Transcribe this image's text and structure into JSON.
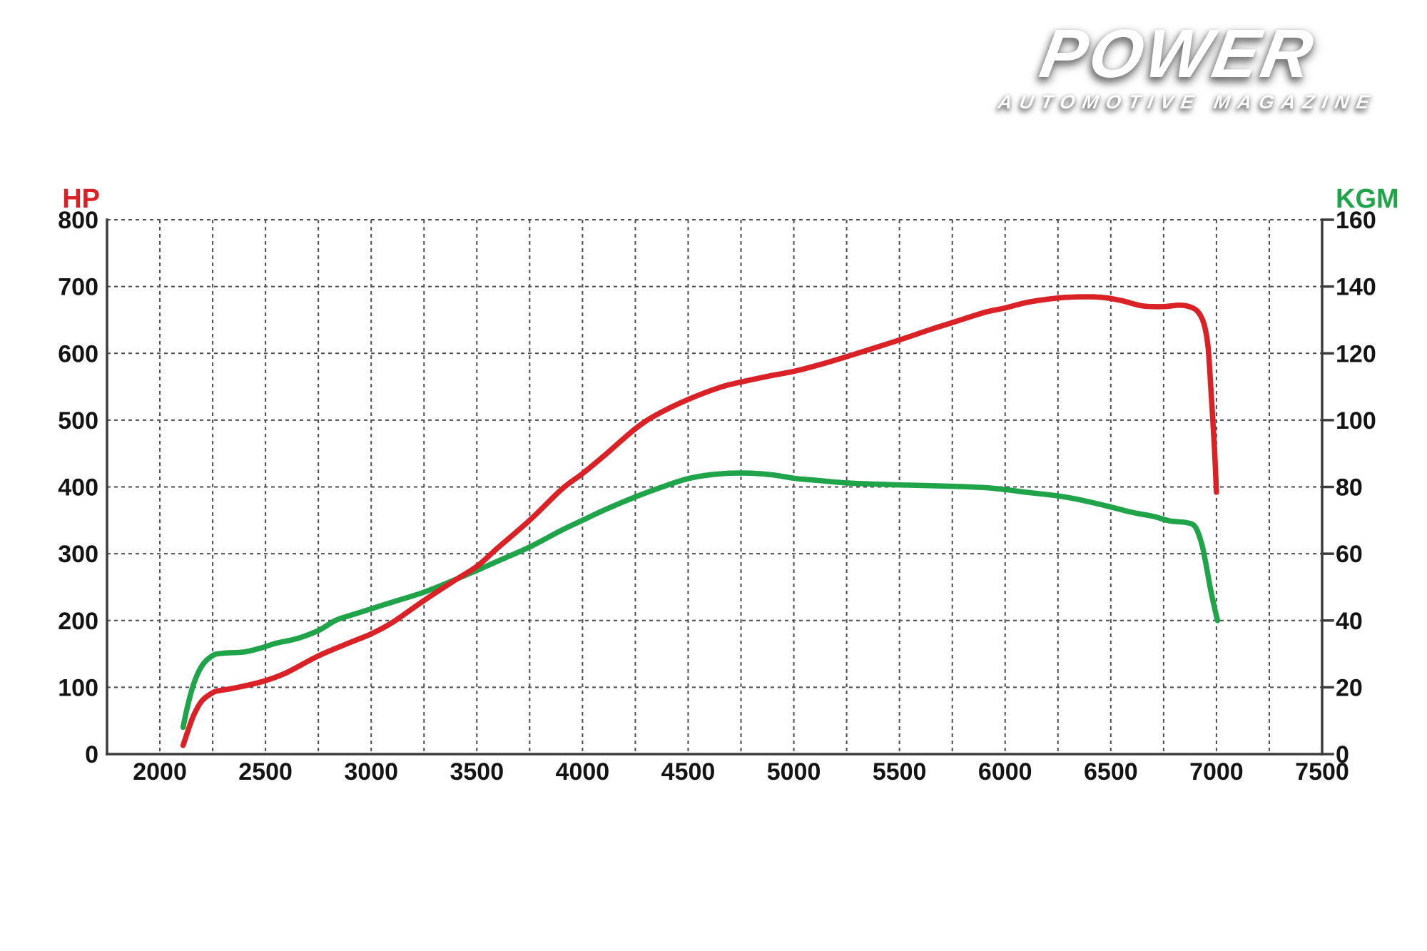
{
  "logo": {
    "title": "POWER",
    "subtitle": "AUTOMOTIVE MAGAZINE"
  },
  "chart_data": {
    "type": "line",
    "title": "",
    "x_axis": {
      "unit": "rpm",
      "min": 1750,
      "max": 7500,
      "grid_step": 250,
      "tick_labels": [
        2000,
        2500,
        3000,
        3500,
        4000,
        4500,
        5000,
        5500,
        6000,
        6500,
        7000,
        7500
      ]
    },
    "left_axis": {
      "label": "HP",
      "min": 0,
      "max": 800,
      "color": "#da2126",
      "tick_labels": [
        0,
        100,
        200,
        300,
        400,
        500,
        600,
        700,
        800
      ]
    },
    "right_axis": {
      "label": "KGM",
      "min": 0,
      "max": 160,
      "color": "#1fa44a",
      "tick_labels": [
        0,
        20,
        40,
        60,
        80,
        100,
        120,
        140,
        160
      ]
    },
    "grid": {
      "style": "dashed",
      "color": "#4d4d4d",
      "axis_color": "#3c3c3c",
      "label_color": "#141414"
    },
    "legend_position": "axis-titles",
    "series": [
      {
        "name": "HP",
        "axis": "left",
        "color": "#da2126",
        "points": [
          [
            2110,
            13
          ],
          [
            2130,
            32
          ],
          [
            2160,
            58
          ],
          [
            2200,
            80
          ],
          [
            2250,
            92
          ],
          [
            2280,
            95
          ],
          [
            2320,
            97
          ],
          [
            2400,
            102
          ],
          [
            2500,
            110
          ],
          [
            2600,
            122
          ],
          [
            2750,
            147
          ],
          [
            2900,
            167
          ],
          [
            3000,
            180
          ],
          [
            3100,
            197
          ],
          [
            3250,
            230
          ],
          [
            3400,
            261
          ],
          [
            3500,
            281
          ],
          [
            3600,
            309
          ],
          [
            3750,
            350
          ],
          [
            3900,
            396
          ],
          [
            4000,
            420
          ],
          [
            4100,
            446
          ],
          [
            4250,
            487
          ],
          [
            4350,
            508
          ],
          [
            4500,
            531
          ],
          [
            4650,
            549
          ],
          [
            4750,
            557
          ],
          [
            4900,
            567
          ],
          [
            5000,
            573
          ],
          [
            5100,
            581
          ],
          [
            5250,
            595
          ],
          [
            5400,
            610
          ],
          [
            5500,
            620
          ],
          [
            5650,
            636
          ],
          [
            5750,
            646
          ],
          [
            5900,
            661
          ],
          [
            6000,
            668
          ],
          [
            6100,
            676
          ],
          [
            6200,
            681
          ],
          [
            6300,
            684
          ],
          [
            6450,
            684
          ],
          [
            6550,
            679
          ],
          [
            6650,
            671
          ],
          [
            6750,
            670
          ],
          [
            6820,
            672
          ],
          [
            6870,
            670
          ],
          [
            6910,
            663
          ],
          [
            6940,
            645
          ],
          [
            6960,
            610
          ],
          [
            6975,
            540
          ],
          [
            6990,
            460
          ],
          [
            7000,
            392
          ]
        ]
      },
      {
        "name": "KGM",
        "axis": "right",
        "color": "#1fa44a",
        "points": [
          [
            2110,
            8
          ],
          [
            2130,
            14
          ],
          [
            2160,
            21
          ],
          [
            2200,
            26.5
          ],
          [
            2250,
            29.5
          ],
          [
            2300,
            30.2
          ],
          [
            2400,
            30.6
          ],
          [
            2480,
            31.8
          ],
          [
            2550,
            33.2
          ],
          [
            2650,
            34.6
          ],
          [
            2750,
            37
          ],
          [
            2830,
            40
          ],
          [
            2900,
            41.5
          ],
          [
            3000,
            43.5
          ],
          [
            3100,
            45.5
          ],
          [
            3250,
            48.5
          ],
          [
            3400,
            52.3
          ],
          [
            3500,
            55
          ],
          [
            3600,
            57.8
          ],
          [
            3750,
            62
          ],
          [
            3900,
            67
          ],
          [
            4000,
            70
          ],
          [
            4100,
            73
          ],
          [
            4250,
            77
          ],
          [
            4400,
            80.5
          ],
          [
            4500,
            82.5
          ],
          [
            4600,
            83.6
          ],
          [
            4700,
            84.1
          ],
          [
            4800,
            84.1
          ],
          [
            4900,
            83.6
          ],
          [
            5000,
            82.6
          ],
          [
            5100,
            82
          ],
          [
            5250,
            81.2
          ],
          [
            5400,
            80.8
          ],
          [
            5500,
            80.6
          ],
          [
            5750,
            80.2
          ],
          [
            5900,
            79.8
          ],
          [
            6000,
            79.2
          ],
          [
            6100,
            78.4
          ],
          [
            6240,
            77.4
          ],
          [
            6350,
            76.2
          ],
          [
            6480,
            74.3
          ],
          [
            6600,
            72.4
          ],
          [
            6700,
            71.2
          ],
          [
            6780,
            69.8
          ],
          [
            6860,
            69.3
          ],
          [
            6900,
            68
          ],
          [
            6930,
            63
          ],
          [
            6950,
            57
          ],
          [
            6970,
            50
          ],
          [
            6990,
            44
          ],
          [
            7005,
            40
          ]
        ]
      }
    ]
  }
}
